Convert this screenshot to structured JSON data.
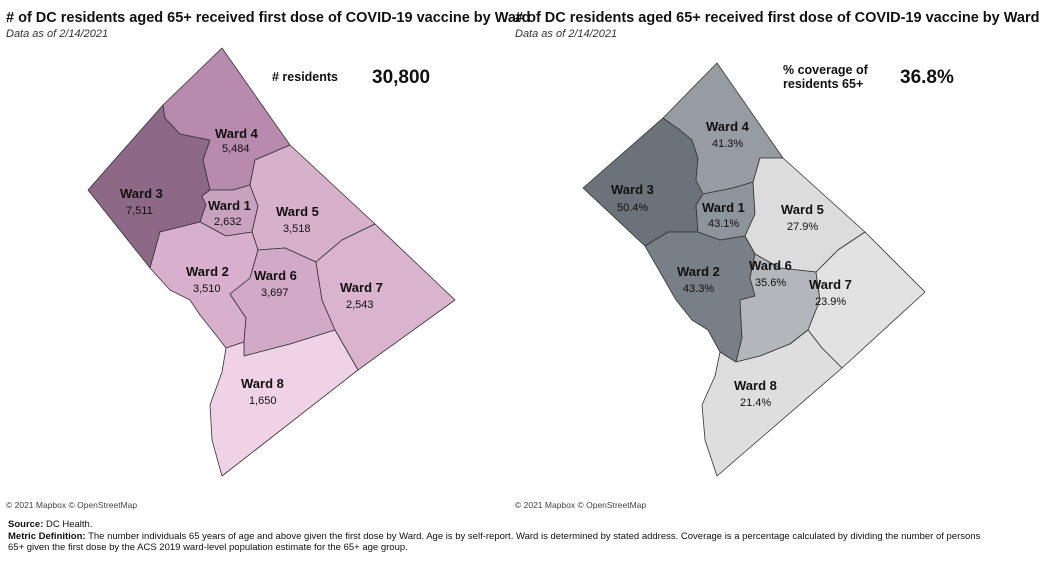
{
  "left_panel": {
    "title": "# of DC residents aged 65+ received first dose of COVID-19 vaccine by Ward",
    "subtitle": "Data as of 2/14/2021",
    "kpi_label": "# residents",
    "kpi_value": "30,800",
    "attribution": "© 2021 Mapbox © OpenStreetMap",
    "wards": [
      {
        "name": "Ward 1",
        "value": "2,632",
        "color": "#c8a2bf"
      },
      {
        "name": "Ward 2",
        "value": "3,510",
        "color": "#d8b0cd"
      },
      {
        "name": "Ward 3",
        "value": "7,511",
        "color": "#8e6887"
      },
      {
        "name": "Ward 4",
        "value": "5,484",
        "color": "#b88aae"
      },
      {
        "name": "Ward 5",
        "value": "3,518",
        "color": "#d7b0cc"
      },
      {
        "name": "Ward 6",
        "value": "3,697",
        "color": "#d3a9c8"
      },
      {
        "name": "Ward 7",
        "value": "2,543",
        "color": "#dab3cf"
      },
      {
        "name": "Ward 8",
        "value": "1,650",
        "color": "#f0d2e6"
      }
    ]
  },
  "right_panel": {
    "title": "# of DC residents aged 65+ received first dose of COVID-19 vaccine by Ward",
    "subtitle": "Data as of 2/14/2021",
    "kpi_label_line1": "% coverage of",
    "kpi_label_line2": "residents 65+",
    "kpi_value": "36.8%",
    "attribution": "© 2021 Mapbox © OpenStreetMap",
    "wards": [
      {
        "name": "Ward 1",
        "value": "43.1%",
        "color": "#8e949b"
      },
      {
        "name": "Ward 2",
        "value": "43.3%",
        "color": "#797f86"
      },
      {
        "name": "Ward 3",
        "value": "50.4%",
        "color": "#6c7279"
      },
      {
        "name": "Ward 4",
        "value": "41.3%",
        "color": "#979ca3"
      },
      {
        "name": "Ward 5",
        "value": "27.9%",
        "color": "#dcdcdc"
      },
      {
        "name": "Ward 6",
        "value": "35.6%",
        "color": "#b3b6ba"
      },
      {
        "name": "Ward 7",
        "value": "23.9%",
        "color": "#e2e2e2"
      },
      {
        "name": "Ward 8",
        "value": "21.4%",
        "color": "#dedede"
      }
    ]
  },
  "footer": {
    "source_label": "Source:",
    "source_text": "DC Health.",
    "metric_label": "Metric Definition:",
    "metric_text": "The number individuals 65 years of age and above given the first dose by Ward. Age is by self-report. Ward is determined by stated address. Coverage is a percentage calculated by dividing the number of persons 65+ given the first dose by the ACS 2019 ward-level population estimate for the 65+ age group."
  }
}
